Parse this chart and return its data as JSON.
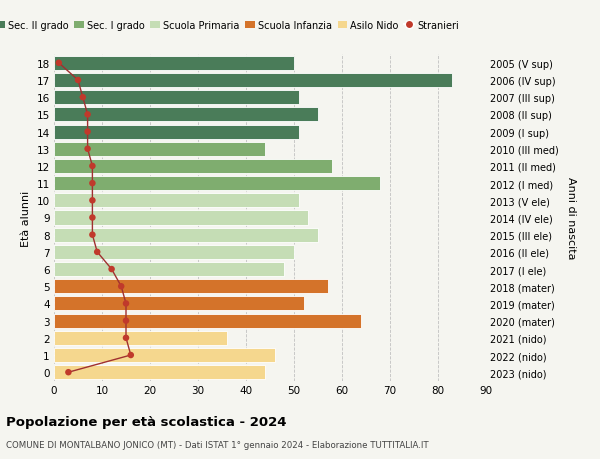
{
  "ages": [
    18,
    17,
    16,
    15,
    14,
    13,
    12,
    11,
    10,
    9,
    8,
    7,
    6,
    5,
    4,
    3,
    2,
    1,
    0
  ],
  "bar_values": [
    50,
    83,
    51,
    55,
    51,
    44,
    58,
    68,
    51,
    53,
    55,
    50,
    48,
    57,
    52,
    64,
    36,
    46,
    44
  ],
  "stranieri": [
    1,
    5,
    6,
    7,
    7,
    7,
    8,
    8,
    8,
    8,
    8,
    9,
    12,
    14,
    15,
    15,
    15,
    16,
    3
  ],
  "right_labels": [
    "2005 (V sup)",
    "2006 (IV sup)",
    "2007 (III sup)",
    "2008 (II sup)",
    "2009 (I sup)",
    "2010 (III med)",
    "2011 (II med)",
    "2012 (I med)",
    "2013 (V ele)",
    "2014 (IV ele)",
    "2015 (III ele)",
    "2016 (II ele)",
    "2017 (I ele)",
    "2018 (mater)",
    "2019 (mater)",
    "2020 (mater)",
    "2021 (nido)",
    "2022 (nido)",
    "2023 (nido)"
  ],
  "bar_colors": [
    "#4a7c59",
    "#4a7c59",
    "#4a7c59",
    "#4a7c59",
    "#4a7c59",
    "#7fad6f",
    "#7fad6f",
    "#7fad6f",
    "#c5ddb5",
    "#c5ddb5",
    "#c5ddb5",
    "#c5ddb5",
    "#c5ddb5",
    "#d4732a",
    "#d4732a",
    "#d4732a",
    "#f5d78e",
    "#f5d78e",
    "#f5d78e"
  ],
  "stranieri_color": "#c0392b",
  "line_color": "#a03030",
  "title": "Popolazione per età scolastica - 2024",
  "subtitle": "COMUNE DI MONTALBANO JONICO (MT) - Dati ISTAT 1° gennaio 2024 - Elaborazione TUTTITALIA.IT",
  "ylabel": "Età alunni",
  "ylabel_right": "Anni di nascita",
  "xlim": [
    0,
    90
  ],
  "bg_color": "#f5f5f0",
  "legend_labels": [
    "Sec. II grado",
    "Sec. I grado",
    "Scuola Primaria",
    "Scuola Infanzia",
    "Asilo Nido",
    "Stranieri"
  ],
  "legend_colors": [
    "#4a7c59",
    "#7fad6f",
    "#c5ddb5",
    "#d4732a",
    "#f5d78e",
    "#c0392b"
  ]
}
